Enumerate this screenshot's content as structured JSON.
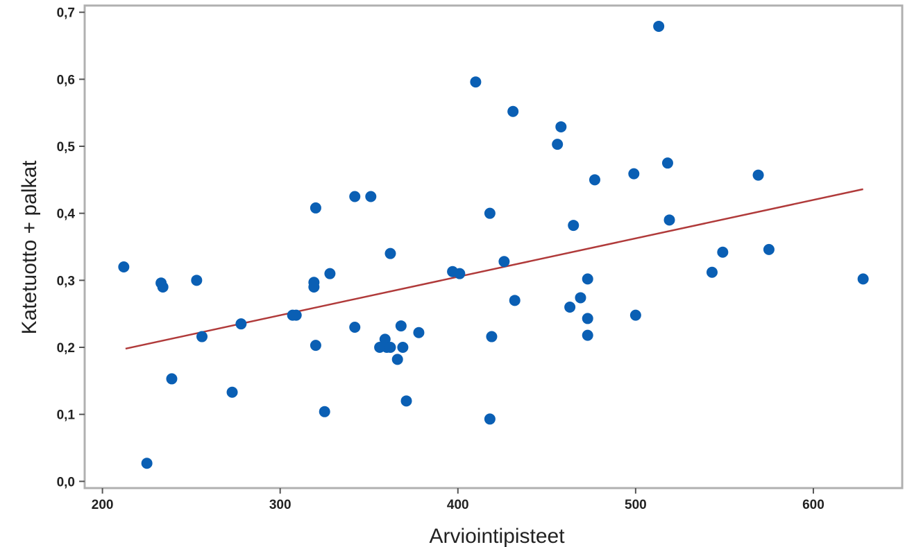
{
  "chart_data": {
    "type": "scatter",
    "title": "",
    "xlabel": "Arviointipisteet",
    "ylabel": "Katetuotto + palkat",
    "xlim": [
      190,
      650
    ],
    "ylim": [
      -0.01,
      0.71
    ],
    "xticks": [
      200,
      300,
      400,
      500,
      600
    ],
    "xtick_labels": [
      "200",
      "300",
      "400",
      "500",
      "600"
    ],
    "yticks": [
      0.0,
      0.1,
      0.2,
      0.3,
      0.4,
      0.5,
      0.6,
      0.7
    ],
    "ytick_labels": [
      "0,0",
      "0,1",
      "0,2",
      "0,3",
      "0,4",
      "0,5",
      "0,6",
      "0,7"
    ],
    "grid": false,
    "marker_color": "#0a5fb4",
    "trend_color": "#b03a3a",
    "series": [
      {
        "points": [
          [
            212,
            0.32
          ],
          [
            225,
            0.027
          ],
          [
            233,
            0.296
          ],
          [
            234,
            0.29
          ],
          [
            239,
            0.153
          ],
          [
            253,
            0.3
          ],
          [
            256,
            0.216
          ],
          [
            273,
            0.133
          ],
          [
            278,
            0.235
          ],
          [
            307,
            0.248
          ],
          [
            309,
            0.248
          ],
          [
            319,
            0.297
          ],
          [
            319,
            0.29
          ],
          [
            320,
            0.408
          ],
          [
            320,
            0.203
          ],
          [
            325,
            0.104
          ],
          [
            328,
            0.31
          ],
          [
            342,
            0.425
          ],
          [
            342,
            0.23
          ],
          [
            351,
            0.425
          ],
          [
            356,
            0.2
          ],
          [
            359,
            0.212
          ],
          [
            360,
            0.2
          ],
          [
            362,
            0.2
          ],
          [
            362,
            0.34
          ],
          [
            366,
            0.182
          ],
          [
            368,
            0.232
          ],
          [
            369,
            0.2
          ],
          [
            371,
            0.12
          ],
          [
            378,
            0.222
          ],
          [
            397,
            0.313
          ],
          [
            401,
            0.31
          ],
          [
            410,
            0.596
          ],
          [
            418,
            0.4
          ],
          [
            418,
            0.093
          ],
          [
            419,
            0.216
          ],
          [
            426,
            0.328
          ],
          [
            431,
            0.552
          ],
          [
            432,
            0.27
          ],
          [
            456,
            0.503
          ],
          [
            458,
            0.529
          ],
          [
            463,
            0.26
          ],
          [
            465,
            0.382
          ],
          [
            469,
            0.274
          ],
          [
            473,
            0.302
          ],
          [
            473,
            0.243
          ],
          [
            473,
            0.218
          ],
          [
            477,
            0.45
          ],
          [
            499,
            0.459
          ],
          [
            500,
            0.248
          ],
          [
            513,
            0.679
          ],
          [
            518,
            0.475
          ],
          [
            519,
            0.39
          ],
          [
            543,
            0.312
          ],
          [
            549,
            0.342
          ],
          [
            569,
            0.457
          ],
          [
            575,
            0.346
          ],
          [
            628,
            0.302
          ]
        ]
      }
    ],
    "trendline": {
      "x": [
        213,
        628
      ],
      "y": [
        0.198,
        0.436
      ]
    }
  }
}
